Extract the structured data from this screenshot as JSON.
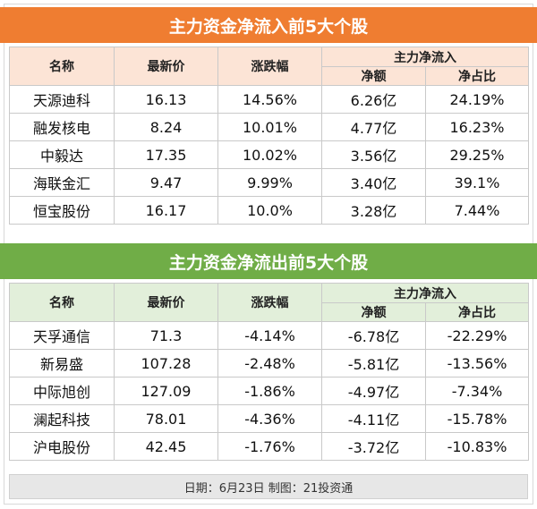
{
  "inflow": {
    "title": "主力资金净流入前5大个股",
    "headers": {
      "name": "名称",
      "price": "最新价",
      "change": "涨跌幅",
      "group": "主力净流入",
      "net": "净额",
      "ratio": "净占比"
    },
    "rows": [
      {
        "name": "天源迪科",
        "price": "16.13",
        "change": "14.56%",
        "net": "6.26亿",
        "ratio": "24.19%"
      },
      {
        "name": "融发核电",
        "price": "8.24",
        "change": "10.01%",
        "net": "4.77亿",
        "ratio": "16.23%"
      },
      {
        "name": "中毅达",
        "price": "17.35",
        "change": "10.02%",
        "net": "3.56亿",
        "ratio": "29.25%"
      },
      {
        "name": "海联金汇",
        "price": "9.47",
        "change": "9.99%",
        "net": "3.40亿",
        "ratio": "39.1%"
      },
      {
        "name": "恒宝股份",
        "price": "16.17",
        "change": "10.0%",
        "net": "3.28亿",
        "ratio": "7.44%"
      }
    ]
  },
  "outflow": {
    "title": "主力资金净流出前5大个股",
    "headers": {
      "name": "名称",
      "price": "最新价",
      "change": "涨跌幅",
      "group": "主力净流入",
      "net": "净额",
      "ratio": "净占比"
    },
    "rows": [
      {
        "name": "天孚通信",
        "price": "71.3",
        "change": "-4.14%",
        "net": "-6.78亿",
        "ratio": "-22.29%"
      },
      {
        "name": "新易盛",
        "price": "107.28",
        "change": "-2.48%",
        "net": "-5.81亿",
        "ratio": "-13.56%"
      },
      {
        "name": "中际旭创",
        "price": "127.09",
        "change": "-1.86%",
        "net": "-4.97亿",
        "ratio": "-7.34%"
      },
      {
        "name": "澜起科技",
        "price": "78.01",
        "change": "-4.36%",
        "net": "-4.11亿",
        "ratio": "-15.78%"
      },
      {
        "name": "沪电股份",
        "price": "42.45",
        "change": "-1.76%",
        "net": "-3.72亿",
        "ratio": "-10.83%"
      }
    ]
  },
  "footer": "日期：6月23日 制图：21投资通",
  "colors": {
    "orange": "#ef7d31",
    "green": "#70ad47",
    "orange_light": "#fce4d6",
    "green_light": "#e2efda"
  }
}
